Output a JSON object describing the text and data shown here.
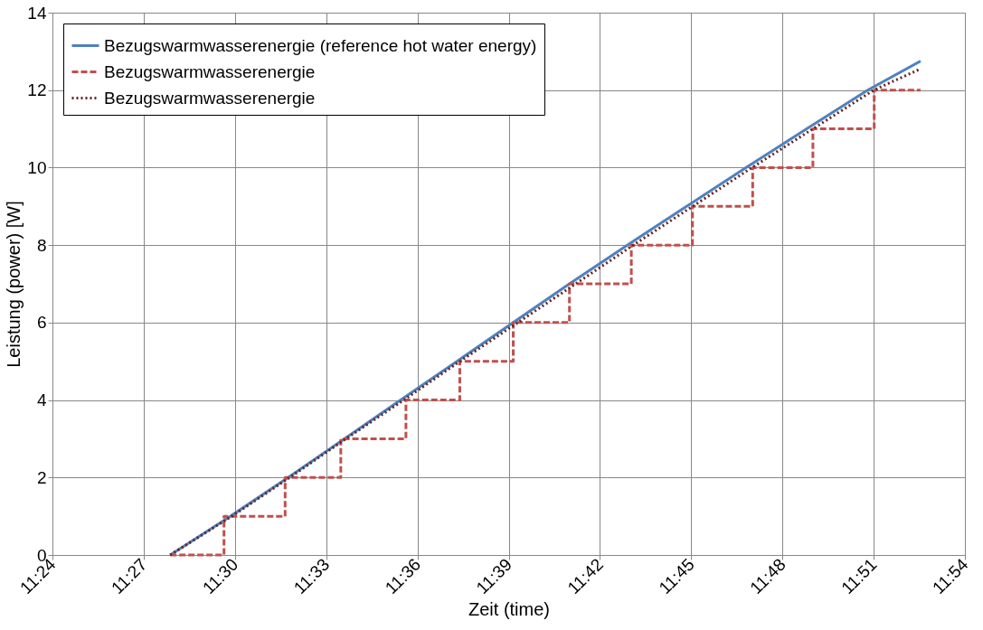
{
  "chart_data": {
    "type": "line",
    "xlabel": "Zeit (time)",
    "ylabel": "Leistung (power) [W]",
    "xlim": [
      11.4,
      11.9
    ],
    "xticks": [
      {
        "value": 11.4,
        "label": "11:24"
      },
      {
        "value": 11.45,
        "label": "11:27"
      },
      {
        "value": 11.5,
        "label": "11:30"
      },
      {
        "value": 11.55,
        "label": "11:33"
      },
      {
        "value": 11.6,
        "label": "11:36"
      },
      {
        "value": 11.65,
        "label": "11:39"
      },
      {
        "value": 11.7,
        "label": "11:42"
      },
      {
        "value": 11.75,
        "label": "11:45"
      },
      {
        "value": 11.8,
        "label": "11:48"
      },
      {
        "value": 11.85,
        "label": "11:51"
      },
      {
        "value": 11.9,
        "label": "11:54"
      }
    ],
    "ylim": [
      0,
      14
    ],
    "yticks": [
      0,
      2,
      4,
      6,
      8,
      10,
      12,
      14
    ],
    "grid": true,
    "legend": "top left",
    "marker": "none",
    "series": [
      {
        "name": "Bezugswarmwasserenergie (reference hot water energy)",
        "color": "#4f81bd",
        "line_style": "solid",
        "x": [
          11.4645,
          11.4975,
          11.5292,
          11.56,
          11.5908,
          11.6217,
          11.6525,
          11.6833,
          11.715,
          11.7475,
          11.78,
          11.8133,
          11.8467,
          11.8757
        ],
        "values": [
          0,
          1,
          2,
          3,
          4,
          5,
          6,
          7,
          8,
          9,
          10,
          11,
          12,
          12.75
        ]
      },
      {
        "name": "Bezugswarmwasserenergie",
        "type": "step",
        "color": "#c0504d",
        "line_style": "dashed",
        "x": [
          11.4645,
          11.494,
          11.5275,
          11.558,
          11.5937,
          11.6232,
          11.6525,
          11.6833,
          11.7172,
          11.7507,
          11.7837,
          11.8167,
          11.8503,
          11.8757
        ],
        "values": [
          0,
          1,
          2,
          3,
          4,
          5,
          6,
          7,
          8,
          9,
          10,
          11,
          12,
          12
        ]
      },
      {
        "name": "Bezugswarmwasserenergie",
        "color": "#632523",
        "line_style": "dotted",
        "x": [
          11.4645,
          11.4983,
          11.53,
          11.5608,
          11.5925,
          11.6233,
          11.655,
          11.6867,
          11.7183,
          11.7508,
          11.7833,
          11.8167,
          11.85,
          11.8757
        ],
        "values": [
          0,
          1,
          2,
          3,
          4,
          5,
          6,
          7,
          8,
          9,
          10,
          11,
          12,
          12.55
        ]
      }
    ]
  }
}
